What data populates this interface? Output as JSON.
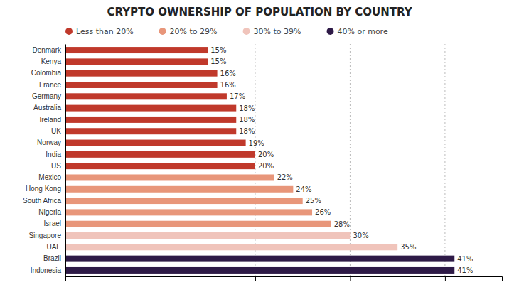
{
  "chart_data": {
    "type": "bar",
    "orientation": "horizontal",
    "stacked": true,
    "title": "CRYPTO OWNERSHIP OF POPULATION BY COUNTRY",
    "categories": [
      "Denmark",
      "Kenya",
      "Colombia",
      "France",
      "Germany",
      "Australia",
      "Ireland",
      "UK",
      "Norway",
      "India",
      "US",
      "Mexico",
      "Hong Kong",
      "South Africa",
      "Nigeria",
      "Israel",
      "Singapore",
      "UAE",
      "Brazil",
      "Indonesia"
    ],
    "series": [
      {
        "name": "Less than 20%",
        "color": "#C0392B",
        "values": [
          15,
          15,
          16,
          16,
          17,
          18,
          18,
          18,
          19,
          20,
          20,
          null,
          null,
          null,
          null,
          null,
          null,
          null,
          null,
          null
        ],
        "value_labels": [
          "15%",
          "15%",
          "16%",
          "16%",
          "17%",
          "18%",
          "18%",
          "18%",
          "19%",
          "20%",
          "20%",
          null,
          null,
          null,
          null,
          null,
          null,
          null,
          null,
          null
        ]
      },
      {
        "name": "20% to 29%",
        "color": "#E8967A",
        "values": [
          null,
          null,
          null,
          null,
          null,
          null,
          null,
          null,
          null,
          null,
          null,
          22,
          24,
          25,
          26,
          28,
          null,
          null,
          null,
          null
        ],
        "value_labels": [
          null,
          null,
          null,
          null,
          null,
          null,
          null,
          null,
          null,
          null,
          null,
          "22%",
          "24%",
          "25%",
          "26%",
          "28%",
          null,
          null,
          null,
          null
        ]
      },
      {
        "name": "30% to 39%",
        "color": "#F0C4BB",
        "values": [
          null,
          null,
          null,
          null,
          null,
          null,
          null,
          null,
          null,
          null,
          null,
          null,
          null,
          null,
          null,
          null,
          30,
          35,
          null,
          null
        ],
        "value_labels": [
          null,
          null,
          null,
          null,
          null,
          null,
          null,
          null,
          null,
          null,
          null,
          null,
          null,
          null,
          null,
          null,
          "30%",
          "35%",
          null,
          null
        ]
      },
      {
        "name": "40% or more",
        "color": "#2E1A47",
        "values": [
          null,
          null,
          null,
          null,
          null,
          null,
          null,
          null,
          null,
          null,
          null,
          null,
          null,
          null,
          null,
          null,
          null,
          null,
          41,
          41
        ],
        "value_labels": [
          null,
          null,
          null,
          null,
          null,
          null,
          null,
          null,
          null,
          null,
          null,
          null,
          null,
          null,
          null,
          null,
          null,
          null,
          "41%",
          "41%"
        ]
      }
    ],
    "xlim": [
      0,
      46
    ],
    "xticks": [
      0,
      20,
      30,
      40
    ],
    "grid": true,
    "tick_labels": "y",
    "data_labels": true,
    "legend": "top"
  }
}
